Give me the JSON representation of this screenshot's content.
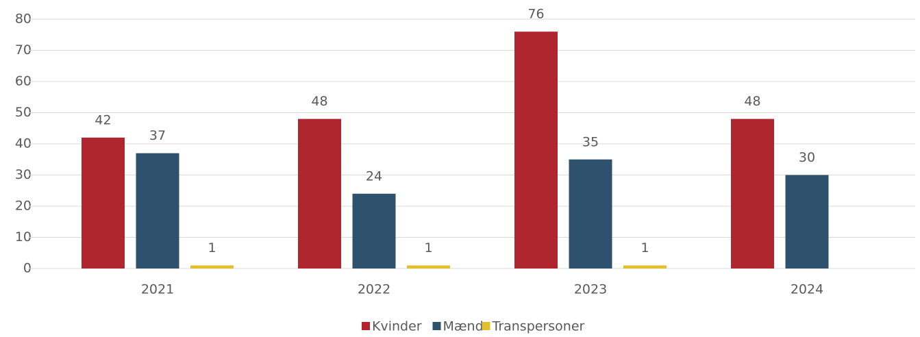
{
  "chart_data": {
    "type": "bar",
    "categories": [
      "2021",
      "2022",
      "2023",
      "2024"
    ],
    "series": [
      {
        "name": "Kvinder",
        "color": "#b0262f",
        "values": [
          42,
          48,
          76,
          48
        ]
      },
      {
        "name": "Mænd",
        "color": "#2e526e",
        "values": [
          37,
          24,
          35,
          30
        ]
      },
      {
        "name": "Transpersoner",
        "color": "#e3c02b",
        "values": [
          1,
          1,
          1,
          null
        ]
      }
    ],
    "ylim": [
      0,
      80
    ],
    "yticks": [
      0,
      10,
      20,
      30,
      40,
      50,
      60,
      70,
      80
    ],
    "grid": true,
    "legend": "bottom"
  }
}
